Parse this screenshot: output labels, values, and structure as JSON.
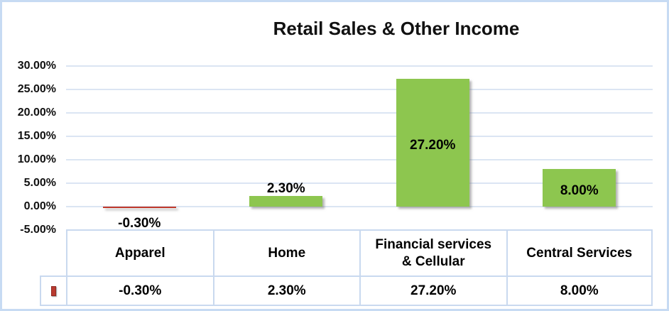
{
  "chart_data": {
    "type": "bar",
    "title": "Retail Sales & Other Income",
    "categories": [
      "Apparel",
      "Home",
      "Financial services & Cellular",
      "Central Services"
    ],
    "values": [
      -0.3,
      2.3,
      27.2,
      8.0
    ],
    "data_labels": [
      "-0.30%",
      "2.30%",
      "27.20%",
      "8.00%"
    ],
    "xlabel": "",
    "ylabel": "",
    "ylim": [
      -5,
      30
    ],
    "ytick_values": [
      30,
      25,
      20,
      15,
      10,
      5,
      0,
      -5
    ],
    "ytick_labels": [
      "30.00%",
      "25.00%",
      "20.00%",
      "15.00%",
      "10.00%",
      "5.00%",
      "0.00%",
      "-5.00%"
    ],
    "grid": true,
    "legend_position": "bottom-table-left",
    "colors": {
      "bar_positive": "#8dc64f",
      "bar_negative": "#c0392b",
      "legend_marker": "#b93a30",
      "gridline": "#dbe5f3",
      "table_border": "#c9d9ef",
      "chart_border": "#c7dbf3",
      "text": "#000000"
    },
    "table": {
      "headers": [
        "Apparel",
        "Home",
        "Financial services & Cellular",
        "Central Services"
      ],
      "rows": [
        [
          "-0.30%",
          "2.30%",
          "27.20%",
          "8.00%"
        ]
      ]
    }
  }
}
